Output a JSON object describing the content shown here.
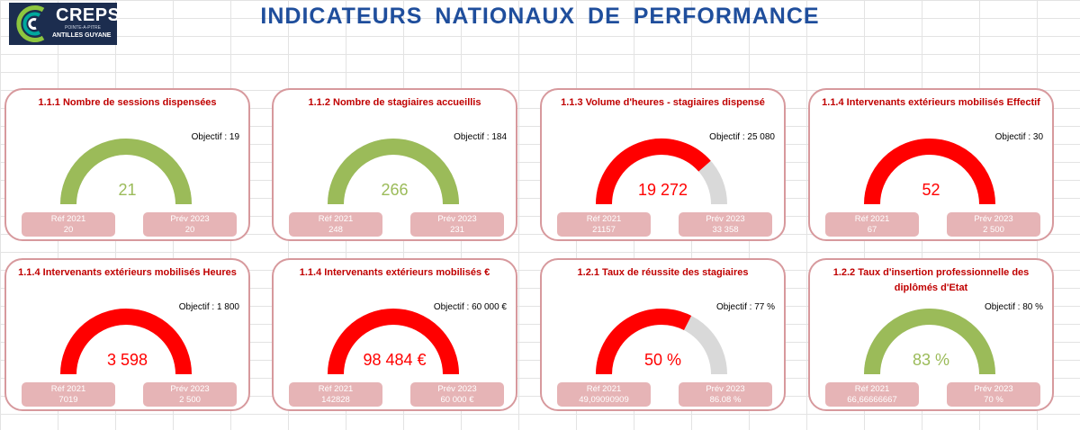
{
  "header": {
    "title": "INDICATEURS NATIONAUX DE PERFORMANCE",
    "logo": {
      "word": "CREPS",
      "subtitle_small": "POINTE-A-PITRE",
      "subtitle": "ANTILLES GUYANE"
    }
  },
  "colors": {
    "green": "#9bbb59",
    "red": "#ff0000",
    "grey": "#d9d9d9",
    "card_border": "#d7999d",
    "box": "#e6b4b6",
    "title": "#1f4e9c",
    "card_title": "#c00000"
  },
  "cards": [
    {
      "title": "1.1.1 Nombre de sessions dispensées",
      "objective": "Objectif : 19",
      "value": "21",
      "fill": 1,
      "color": "green",
      "ref_label": "Réf 2021",
      "ref_value": "20",
      "prev_label": "Prév 2023",
      "prev_value": "20"
    },
    {
      "title": "1.1.2 Nombre de stagiaires accueillis",
      "objective": "Objectif : 184",
      "value": "266",
      "fill": 1,
      "color": "green",
      "ref_label": "Réf 2021",
      "ref_value": "248",
      "prev_label": "Prév 2023",
      "prev_value": "231"
    },
    {
      "title": "1.1.3 Volume d'heures - stagiaires dispensé",
      "objective": "Objectif : 25 080",
      "value": "19 272",
      "fill": 0.77,
      "color": "red",
      "ref_label": "Réf 2021",
      "ref_value": "21157",
      "prev_label": "Prév 2023",
      "prev_value": "33 358"
    },
    {
      "title": "1.1.4 Intervenants extérieurs mobilisés Effectif",
      "objective": "Objectif : 30",
      "value": "52",
      "fill": 1,
      "color": "red",
      "ref_label": "Réf 2021",
      "ref_value": "67",
      "prev_label": "Prév 2023",
      "prev_value": "2 500"
    },
    {
      "title": "1.1.4 Intervenants extérieurs mobilisés Heures",
      "objective": "Objectif : 1 800",
      "value": "3 598",
      "fill": 1,
      "color": "red",
      "ref_label": "Réf 2021",
      "ref_value": "7019",
      "prev_label": "Prév 2023",
      "prev_value": "2 500"
    },
    {
      "title": "1.1.4 Intervenants extérieurs mobilisés €",
      "objective": "Objectif : 60 000  €",
      "value": "98 484 €",
      "fill": 1,
      "color": "red",
      "ref_label": "Réf 2021",
      "ref_value": "142828",
      "prev_label": "Prév 2023",
      "prev_value": "60 000 €"
    },
    {
      "title": "1.2.1 Taux de réussite des stagiaires",
      "objective": "Objectif : 77  %",
      "value": "50 %",
      "fill": 0.65,
      "color": "red",
      "ref_label": "Réf 2021",
      "ref_value": "49,09090909",
      "prev_label": "Prév 2023",
      "prev_value": "86.08 %"
    },
    {
      "title": "1.2.2 Taux d'insertion professionnelle des diplômés d'Etat",
      "objective": "Objectif : 80  %",
      "value": "83 %",
      "fill": 1,
      "color": "green",
      "ref_label": "Réf 2021",
      "ref_value": "66,66666667",
      "prev_label": "Prév 2023",
      "prev_value": "70 %"
    }
  ]
}
